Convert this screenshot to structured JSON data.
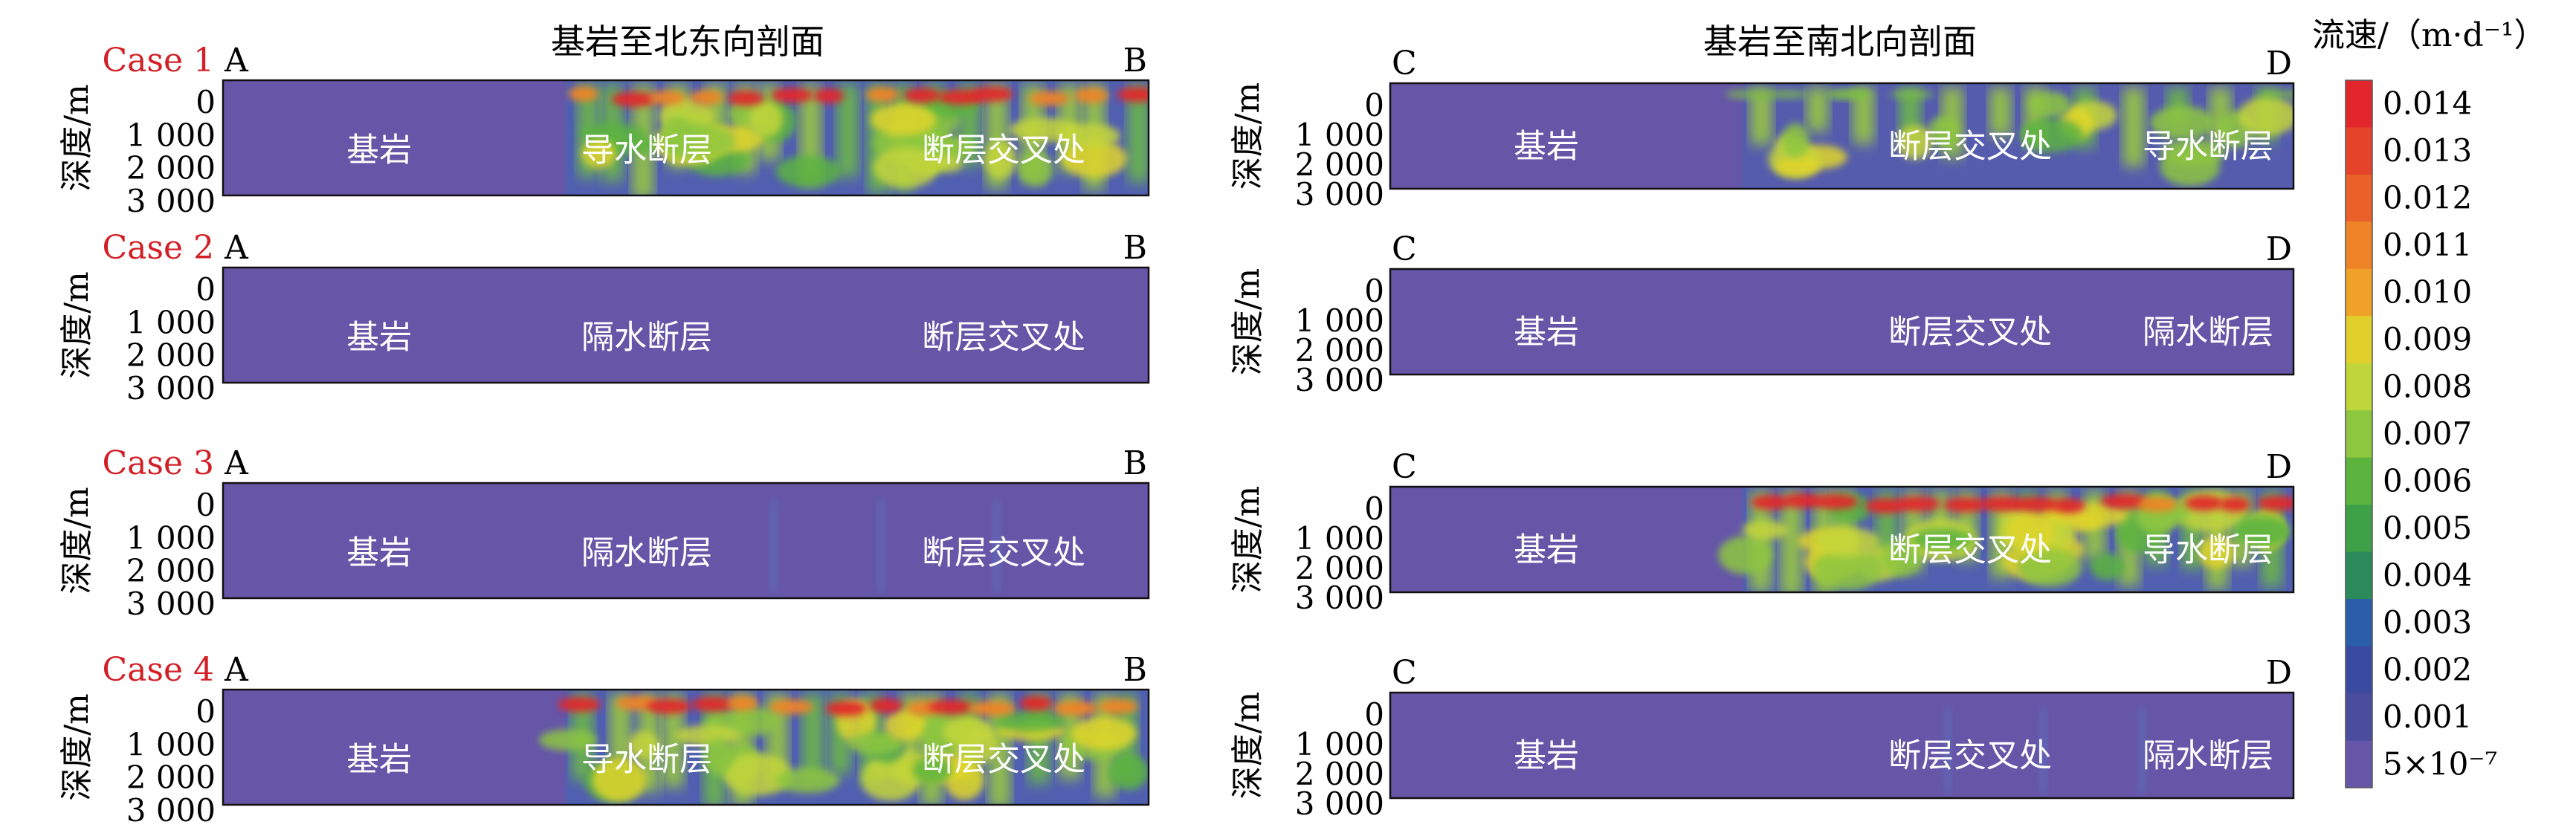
{
  "columns": [
    {
      "title": "基岩至北东向剖面",
      "left_label": "A",
      "right_label": "B"
    },
    {
      "title": "基岩至南北向剖面",
      "left_label": "C",
      "right_label": "D"
    }
  ],
  "cases": [
    {
      "label": "Case 1",
      "left": {
        "regions": [
          "基岩",
          "导水断层",
          "断层交叉处"
        ],
        "flow": "strong"
      },
      "right": {
        "regions": [
          "基岩",
          "断层交叉处",
          "导水断层"
        ],
        "flow": "medium"
      }
    },
    {
      "label": "Case 2",
      "left": {
        "regions": [
          "基岩",
          "隔水断层",
          "断层交叉处"
        ],
        "flow": "none"
      },
      "right": {
        "regions": [
          "基岩",
          "断层交叉处",
          "隔水断层"
        ],
        "flow": "none"
      }
    },
    {
      "label": "Case 3",
      "left": {
        "regions": [
          "基岩",
          "隔水断层",
          "断层交叉处"
        ],
        "flow": "trace"
      },
      "right": {
        "regions": [
          "基岩",
          "断层交叉处",
          "导水断层"
        ],
        "flow": "strong"
      }
    },
    {
      "label": "Case 4",
      "left": {
        "regions": [
          "基岩",
          "导水断层",
          "断层交叉处"
        ],
        "flow": "strong"
      },
      "right": {
        "regions": [
          "基岩",
          "断层交叉处",
          "隔水断层"
        ],
        "flow": "trace"
      }
    }
  ],
  "y_axis": {
    "label": "深度/m",
    "ticks": [
      "0",
      "1 000",
      "2 000",
      "3 000"
    ]
  },
  "colorbar": {
    "title": "流速/（m·d⁻¹）",
    "ticks": [
      "0.014",
      "0.013",
      "0.012",
      "0.011",
      "0.010",
      "0.009",
      "0.008",
      "0.007",
      "0.006",
      "0.005",
      "0.004",
      "0.003",
      "0.002",
      "0.001",
      "5×10⁻⁷"
    ],
    "colors": [
      "#e3262b",
      "#e5432a",
      "#e96128",
      "#ef8427",
      "#f0a228",
      "#e1cf2c",
      "#bfd63a",
      "#8dc63f",
      "#5cb43f",
      "#3ea047",
      "#2a8a5a",
      "#2a5ea8",
      "#3a4aa0",
      "#4a4c9e",
      "#6556a8"
    ]
  },
  "colors": {
    "bedrock": "#6556a8",
    "case_label": "#d21f26"
  }
}
